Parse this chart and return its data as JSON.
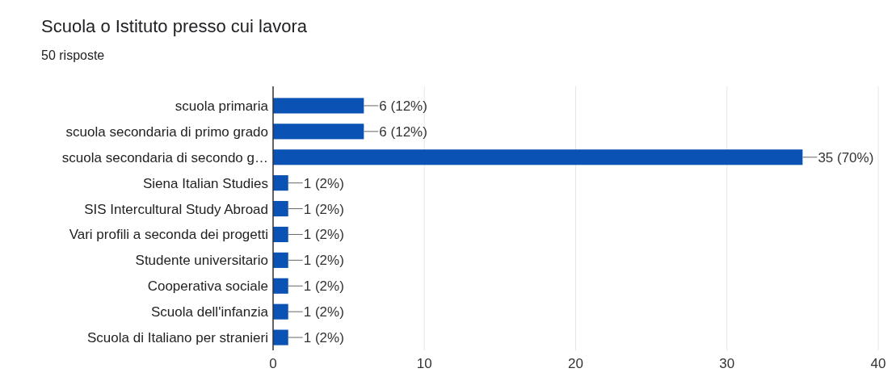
{
  "chart_data": {
    "type": "bar",
    "orientation": "horizontal",
    "title": "Scuola o Istituto presso cui lavora",
    "subtitle": "50 risposte",
    "categories": [
      "scuola primaria",
      "scuola secondaria di primo grado",
      "scuola secondaria di secondo g…",
      "Siena Italian Studies",
      "SIS Intercultural Study Abroad",
      "Vari profili a seconda dei progetti",
      "Studente universitario",
      "Cooperativa sociale",
      "Scuola dell'infanzia",
      "Scuola di Italiano per stranieri"
    ],
    "values": [
      6,
      6,
      35,
      1,
      1,
      1,
      1,
      1,
      1,
      1
    ],
    "value_labels": [
      "6 (12%)",
      "6 (12%)",
      "35 (70%)",
      "1 (2%)",
      "1 (2%)",
      "1 (2%)",
      "1 (2%)",
      "1 (2%)",
      "1 (2%)",
      "1 (2%)"
    ],
    "color": "#0b52b5",
    "xlim": [
      0,
      40
    ],
    "xticks": [
      0,
      10,
      20,
      30,
      40
    ],
    "grid": "x"
  }
}
